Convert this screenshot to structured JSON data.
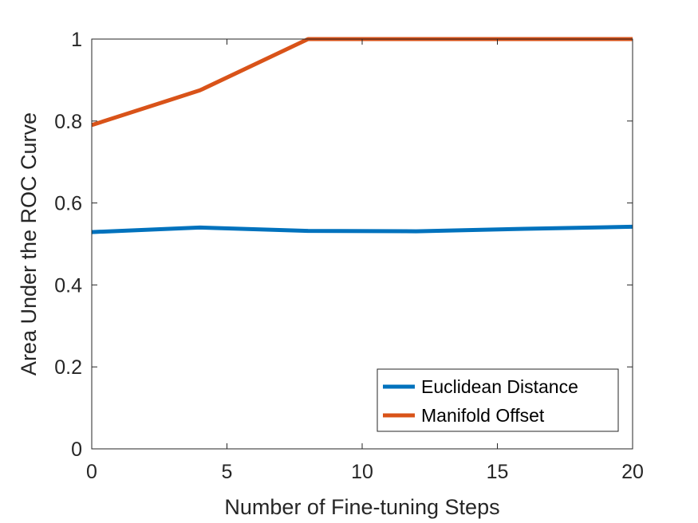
{
  "chart_data": {
    "type": "line",
    "title": "",
    "xlabel": "Number of Fine-tuning Steps",
    "ylabel": "Area Under the ROC Curve",
    "xlim": [
      0,
      20
    ],
    "ylim": [
      0,
      1
    ],
    "xticks": [
      0,
      5,
      10,
      15,
      20
    ],
    "yticks": [
      0,
      0.2,
      0.4,
      0.6,
      0.8,
      1
    ],
    "xtick_labels": [
      "0",
      "5",
      "10",
      "15",
      "20"
    ],
    "ytick_labels": [
      "0",
      "0.2",
      "0.4",
      "0.6",
      "0.8",
      "1"
    ],
    "grid": false,
    "legend_position": "bottom-right",
    "series": [
      {
        "name": "Euclidean Distance",
        "color": "#0072BD",
        "x": [
          0,
          4,
          8,
          12,
          16,
          20
        ],
        "y": [
          0.529,
          0.54,
          0.532,
          0.531,
          0.537,
          0.542
        ]
      },
      {
        "name": "Manifold Offset",
        "color": "#D95319",
        "x": [
          0,
          4,
          8,
          12,
          16,
          20
        ],
        "y": [
          0.79,
          0.875,
          1.0,
          1.0,
          1.0,
          1.0
        ]
      }
    ]
  }
}
